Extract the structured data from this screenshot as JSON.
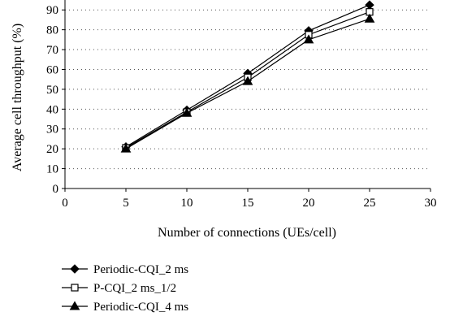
{
  "chart_data": {
    "type": "line",
    "xlabel": "Number of connections (UEs/cell)",
    "ylabel": "Average cell throughput (%)",
    "xlim": [
      0,
      30
    ],
    "ylim": [
      0,
      95
    ],
    "x_ticks": [
      "0",
      "5",
      "10",
      "15",
      "20",
      "25",
      "30"
    ],
    "y_ticks": [
      "0",
      "10",
      "20",
      "30",
      "40",
      "50",
      "60",
      "70",
      "80",
      "90"
    ],
    "grid": "dotted horizontal lines",
    "legend_position": "bottom-left",
    "x": [
      5,
      10,
      15,
      20,
      25
    ],
    "series": [
      {
        "name": "Periodic-CQI_2 ms",
        "marker": "diamond-filled",
        "values": [
          21,
          39.5,
          58,
          79.5,
          92.5
        ]
      },
      {
        "name": "P-CQI_2 ms_1/2",
        "marker": "square-open",
        "values": [
          20.5,
          38.5,
          56,
          77.5,
          89
        ]
      },
      {
        "name": "Periodic-CQI_4 ms",
        "marker": "triangle-filled",
        "values": [
          20,
          38,
          54,
          75,
          85.5
        ]
      }
    ]
  }
}
